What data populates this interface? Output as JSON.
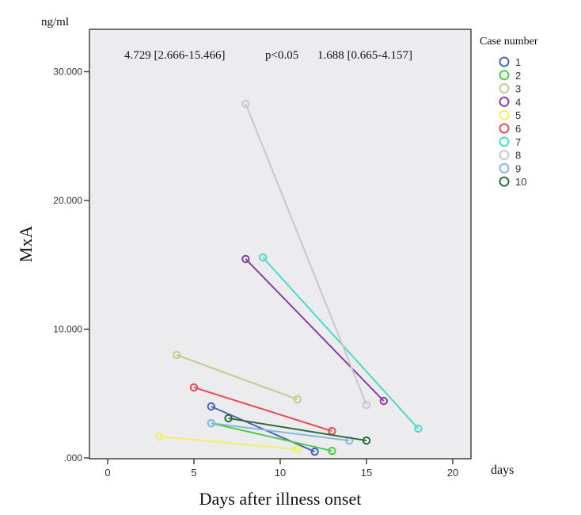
{
  "chart_data": {
    "type": "line",
    "title": "",
    "annotation": {
      "left": "4.729 [2.666-15.466]",
      "middle": "p<0.05",
      "right": "1.688 [0.665-4.157]"
    },
    "xlabel": "Days after illness onset",
    "xunit": "days",
    "ylabel": "MxA",
    "yunit": "ng/ml",
    "xlim": [
      -1.1,
      21
    ],
    "ylim": [
      0,
      33.3
    ],
    "xticks": [
      0,
      5,
      10,
      15,
      20
    ],
    "xtick_labels": [
      "0",
      "5",
      "10",
      "15",
      "20"
    ],
    "yticks": [
      0,
      10,
      20,
      30
    ],
    "ytick_labels": [
      ".000",
      "10.000",
      "20.000",
      "30.000"
    ],
    "yscale_note": "values in thousands",
    "grid": false,
    "legend": {
      "title": "Case number",
      "position": "right"
    },
    "series": [
      {
        "name": "1",
        "color": "#4a64b8",
        "points": [
          [
            6,
            4.0
          ],
          [
            12,
            0.49
          ]
        ]
      },
      {
        "name": "2",
        "color": "#4ccc4c",
        "points": [
          [
            6,
            2.7
          ],
          [
            13,
            0.55
          ]
        ]
      },
      {
        "name": "3",
        "color": "#c8c88e",
        "points": [
          [
            4,
            8.0
          ],
          [
            11,
            4.55
          ]
        ]
      },
      {
        "name": "4",
        "color": "#8a3ea0",
        "points": [
          [
            8,
            15.45
          ],
          [
            16,
            4.43
          ]
        ]
      },
      {
        "name": "5",
        "color": "#f0f060",
        "points": [
          [
            3,
            1.66
          ],
          [
            11,
            0.68
          ]
        ]
      },
      {
        "name": "6",
        "color": "#e84a55",
        "points": [
          [
            5,
            5.48
          ],
          [
            13,
            2.09
          ]
        ]
      },
      {
        "name": "7",
        "color": "#4ed8c8",
        "points": [
          [
            9,
            15.57
          ],
          [
            18,
            2.28
          ]
        ]
      },
      {
        "name": "8",
        "color": "#c8c8c8",
        "points": [
          [
            8,
            27.5
          ],
          [
            15,
            4.12
          ]
        ]
      },
      {
        "name": "9",
        "color": "#8ab4e0",
        "points": [
          [
            6,
            2.7
          ],
          [
            14,
            1.35
          ]
        ]
      },
      {
        "name": "10",
        "color": "#2c6a3c",
        "points": [
          [
            7,
            3.08
          ],
          [
            15,
            1.35
          ]
        ]
      }
    ]
  }
}
